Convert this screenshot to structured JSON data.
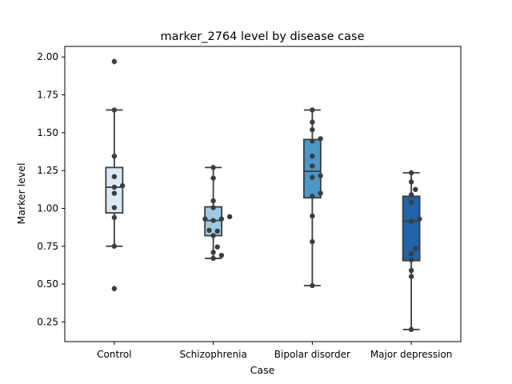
{
  "chart_data": {
    "type": "box",
    "title": "marker_2764 level by disease case",
    "xlabel": "Case",
    "ylabel": "Marker level",
    "categories": [
      "Control",
      "Schizophrenia",
      "Bipolar disorder",
      "Major depression"
    ],
    "ylim": [
      0.12,
      2.07
    ],
    "yticks": [
      0.25,
      0.5,
      0.75,
      1.0,
      1.25,
      1.5,
      1.75,
      2.0
    ],
    "ytick_labels": [
      "0.25",
      "0.50",
      "0.75",
      "1.00",
      "1.25",
      "1.50",
      "1.75",
      "2.00"
    ],
    "colors": [
      "#dbe9f6",
      "#9ecae1",
      "#4b97c9",
      "#2163aa"
    ],
    "boxes": [
      {
        "category": "Control",
        "whisker_low": 0.75,
        "q1": 0.97,
        "median": 1.14,
        "q3": 1.27,
        "whisker_high": 1.65,
        "outliers": [
          1.97,
          0.47
        ],
        "points": [
          1.97,
          1.65,
          1.345,
          1.21,
          1.15,
          1.14,
          1.1,
          1.005,
          0.94,
          0.75,
          0.47
        ]
      },
      {
        "category": "Schizophrenia",
        "whisker_low": 0.67,
        "q1": 0.82,
        "median": 0.92,
        "q3": 1.01,
        "whisker_high": 1.27,
        "outliers": [],
        "points": [
          1.27,
          1.2,
          1.05,
          1.005,
          0.945,
          0.93,
          0.93,
          0.92,
          0.855,
          0.85,
          0.82,
          0.745,
          0.71,
          0.69,
          0.67
        ]
      },
      {
        "category": "Bipolar disorder",
        "whisker_low": 0.49,
        "q1": 1.07,
        "median": 1.245,
        "q3": 1.455,
        "whisker_high": 1.65,
        "outliers": [],
        "points": [
          1.65,
          1.57,
          1.52,
          1.46,
          1.445,
          1.345,
          1.28,
          1.215,
          1.205,
          1.1,
          1.08,
          0.95,
          0.78,
          0.49
        ]
      },
      {
        "category": "Major depression",
        "whisker_low": 0.2,
        "q1": 0.655,
        "median": 0.915,
        "q3": 1.08,
        "whisker_high": 1.235,
        "outliers": [],
        "points": [
          1.235,
          1.175,
          1.125,
          1.09,
          1.04,
          0.93,
          0.915,
          0.735,
          0.7,
          0.66,
          0.59,
          0.55,
          0.2
        ]
      }
    ],
    "grid": false,
    "legend": "none"
  }
}
